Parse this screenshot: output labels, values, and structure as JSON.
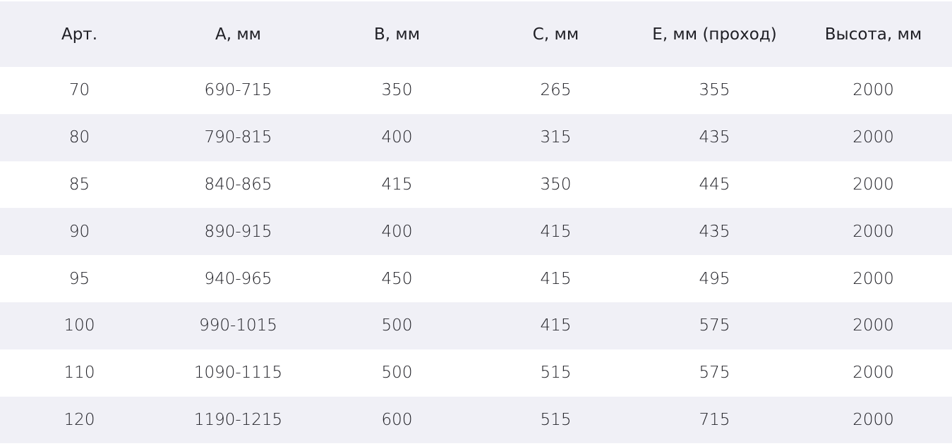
{
  "colors": {
    "stripe": "#f0f0f6",
    "text": "#1e1e24"
  },
  "headers": [
    "Арт.",
    "А, мм",
    "В, мм",
    "С, мм",
    "Е, мм (проход)",
    "Высота, мм"
  ],
  "rows": [
    [
      "70",
      "690-715",
      "350",
      "265",
      "355",
      "2000"
    ],
    [
      "80",
      "790-815",
      "400",
      "315",
      "435",
      "2000"
    ],
    [
      "85",
      "840-865",
      "415",
      "350",
      "445",
      "2000"
    ],
    [
      "90",
      "890-915",
      "400",
      "415",
      "435",
      "2000"
    ],
    [
      "95",
      "940-965",
      "450",
      "415",
      "495",
      "2000"
    ],
    [
      "100",
      "990-1015",
      "500",
      "415",
      "575",
      "2000"
    ],
    [
      "110",
      "1090-1115",
      "500",
      "515",
      "575",
      "2000"
    ],
    [
      "120",
      "1190-1215",
      "600",
      "515",
      "715",
      "2000"
    ]
  ]
}
